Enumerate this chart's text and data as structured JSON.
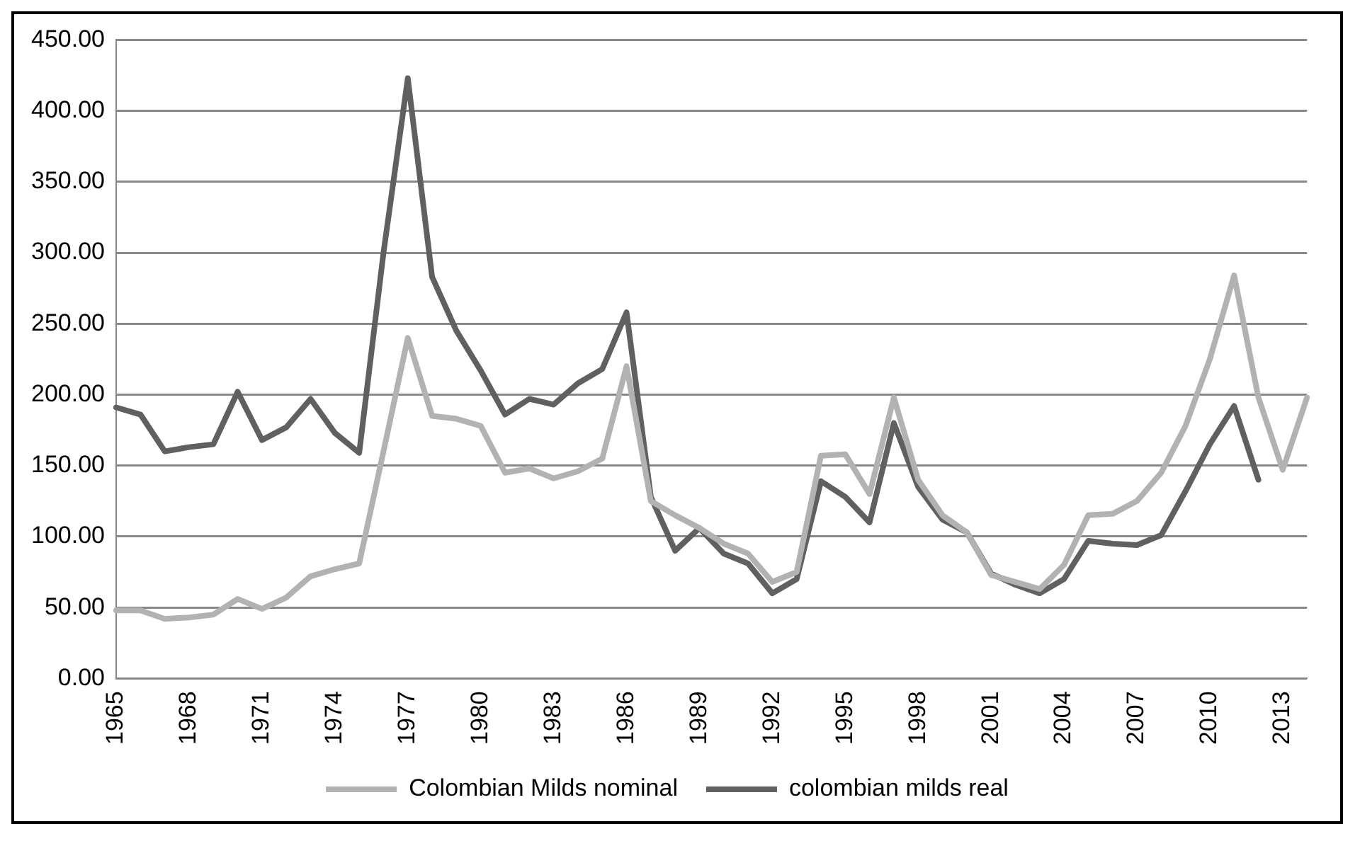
{
  "chart_data": {
    "type": "line",
    "categories": [
      "1965",
      null,
      null,
      "1968",
      null,
      null,
      "1971",
      null,
      null,
      "1974",
      null,
      null,
      "1977",
      null,
      null,
      "1980",
      null,
      null,
      "1983",
      null,
      null,
      "1986",
      null,
      null,
      "1989",
      null,
      null,
      "1992",
      null,
      null,
      "1995",
      null,
      null,
      "1998",
      null,
      null,
      "2001",
      null,
      null,
      "2004",
      null,
      null,
      "2007",
      null,
      null,
      "2010",
      null,
      null,
      "2013",
      null
    ],
    "series": [
      {
        "name": "Colombian Milds nominal",
        "color": "#b2b2b2",
        "values": [
          48,
          48,
          42,
          43,
          45,
          56,
          49,
          57,
          72,
          77,
          81,
          160,
          240,
          185,
          183,
          178,
          145,
          148,
          141,
          146,
          155,
          220,
          125,
          115,
          106,
          95,
          88,
          68,
          75,
          157,
          158,
          130,
          198,
          140,
          115,
          103,
          73,
          68,
          63,
          80,
          115,
          116,
          125,
          145,
          178,
          225,
          284,
          198,
          147,
          198
        ]
      },
      {
        "name": "colombian milds real",
        "color": "#606060",
        "values": [
          191,
          186,
          160,
          163,
          165,
          202,
          168,
          177,
          197,
          173,
          159,
          300,
          423,
          283,
          245,
          217,
          186,
          197,
          193,
          208,
          218,
          258,
          128,
          90,
          106,
          88,
          81,
          60,
          70,
          139,
          128,
          110,
          180,
          135,
          112,
          103,
          74,
          66,
          60,
          70,
          97,
          95,
          94,
          101,
          132,
          165,
          192,
          140,
          null,
          null
        ]
      }
    ],
    "ylim": [
      0,
      450
    ],
    "yticks": [
      {
        "value": 0,
        "label": "0.00"
      },
      {
        "value": 50,
        "label": "50.00"
      },
      {
        "value": 100,
        "label": "100.00"
      },
      {
        "value": 150,
        "label": "150.00"
      },
      {
        "value": 200,
        "label": "200.00"
      },
      {
        "value": 250,
        "label": "250.00"
      },
      {
        "value": 300,
        "label": "300.00"
      },
      {
        "value": 350,
        "label": "350.00"
      },
      {
        "value": 400,
        "label": "400.00"
      },
      {
        "value": 450,
        "label": "450.00"
      }
    ],
    "grid": "y",
    "legend": "bottom",
    "marker": "none",
    "line_style": "solid"
  }
}
